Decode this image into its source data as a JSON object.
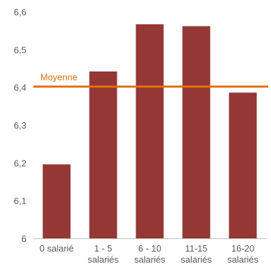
{
  "chart_data": {
    "type": "bar",
    "title": "",
    "xlabel": "",
    "ylabel": "",
    "categories": [
      [
        "0 salarié"
      ],
      [
        "1 - 5",
        "salariés"
      ],
      [
        "6 - 10",
        "salariés"
      ],
      [
        "11-15",
        "salariés"
      ],
      [
        "16-20",
        "salariés"
      ]
    ],
    "values": [
      6.196,
      6.442,
      6.567,
      6.562,
      6.386
    ],
    "ylim": [
      6.0,
      6.6
    ],
    "yticks": [
      "6",
      "6,1",
      "6,2",
      "6,3",
      "6,4",
      "6,5",
      "6,6"
    ],
    "ytick_values": [
      6.0,
      6.1,
      6.2,
      6.3,
      6.4,
      6.5,
      6.6
    ],
    "reference_line": {
      "label": "Moyenne",
      "value": 6.402
    },
    "grid": false,
    "legend": "none",
    "colors": {
      "bar": "#953735",
      "reference_line": "#e3700f",
      "reference_label": "#e07010",
      "axis": "#bfbfbf",
      "text": "#595959"
    }
  }
}
